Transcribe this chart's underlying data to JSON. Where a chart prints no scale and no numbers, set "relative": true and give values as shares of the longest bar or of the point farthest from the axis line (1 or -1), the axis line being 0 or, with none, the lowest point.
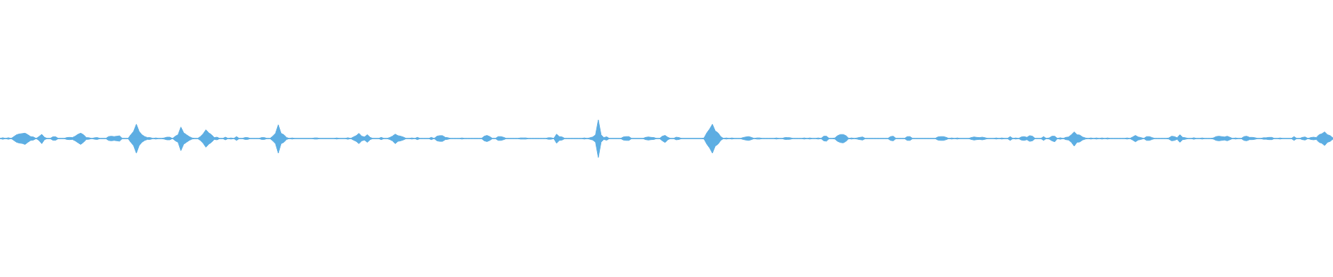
{
  "chart_data": {
    "type": "area",
    "relative": true,
    "categories": [
      null,
      null,
      null,
      null,
      null,
      null,
      null,
      null,
      null,
      null,
      null,
      null,
      null,
      null,
      null,
      null,
      null,
      null,
      null,
      null,
      null,
      null,
      null,
      null,
      null,
      null,
      null,
      null,
      null,
      null,
      null,
      null,
      null,
      null,
      null,
      null,
      null,
      null,
      null,
      null,
      null,
      null,
      null,
      null,
      null,
      null,
      null,
      null,
      null,
      null,
      null,
      null,
      null,
      null,
      null,
      null,
      null,
      null,
      null,
      null,
      null,
      null,
      null,
      null,
      null,
      null,
      null,
      null,
      null,
      null,
      null,
      null,
      null,
      null,
      null,
      null,
      null,
      null,
      null,
      null,
      null,
      null,
      null,
      null,
      null,
      null,
      null,
      null,
      null,
      null,
      null,
      null,
      null,
      null,
      null,
      null,
      null,
      null,
      null,
      null,
      null,
      null,
      null,
      null,
      null,
      null,
      null,
      null,
      null,
      null,
      null,
      null,
      null,
      null,
      null,
      null,
      null,
      null,
      null,
      null,
      null,
      null,
      null,
      null,
      null,
      null,
      null,
      null,
      null,
      null,
      null,
      null,
      null,
      null,
      null,
      null,
      null,
      null,
      null,
      null,
      null,
      null,
      null,
      null,
      null,
      null,
      null,
      null,
      null,
      null,
      null,
      null,
      null,
      null,
      null,
      null,
      null,
      null,
      null,
      null,
      null,
      null,
      null,
      null,
      null,
      null,
      null,
      null,
      null,
      null,
      null,
      null,
      null,
      null,
      null,
      null,
      null,
      null,
      null,
      null,
      null,
      null,
      null,
      null,
      null,
      null,
      null,
      null,
      null,
      null,
      null,
      null,
      null,
      null,
      null,
      null,
      null,
      null,
      null,
      null,
      null,
      null,
      null,
      null,
      null,
      null,
      null,
      null,
      null,
      null,
      null,
      null,
      null,
      null,
      null,
      null,
      null,
      null,
      null,
      null,
      null,
      null,
      null,
      null,
      null,
      null,
      null,
      null,
      null,
      null,
      null,
      null,
      null,
      null,
      null,
      null,
      null,
      null,
      null,
      null,
      null,
      null,
      null,
      null,
      null,
      null,
      null,
      null,
      null,
      null,
      null,
      null,
      null,
      null,
      null,
      null,
      null,
      null,
      null,
      null,
      null,
      null,
      null,
      null,
      null,
      null,
      null,
      null,
      null,
      null,
      null,
      null,
      null,
      null,
      null,
      null,
      null,
      null,
      null,
      null,
      null,
      null,
      null,
      null,
      null,
      null,
      null,
      null,
      null,
      null,
      null,
      null,
      null,
      null,
      null,
      null,
      null,
      null,
      null,
      null,
      null,
      null,
      null,
      null,
      null,
      null,
      null,
      null,
      null,
      null,
      null,
      null,
      null,
      null,
      null,
      null,
      null,
      null,
      null,
      null,
      null,
      null,
      null,
      null,
      null,
      null,
      null,
      null,
      null,
      null,
      null,
      null,
      null,
      null,
      null,
      null,
      null,
      null,
      null,
      null,
      null,
      null,
      null,
      null,
      null,
      null,
      null,
      null,
      null,
      null,
      null,
      null,
      null,
      null,
      null,
      null,
      null,
      null,
      null,
      null,
      null,
      null,
      null,
      null,
      null,
      null,
      null,
      null,
      null,
      null,
      null,
      null,
      null,
      null,
      null,
      null,
      null,
      null,
      null,
      null,
      null,
      null,
      null,
      null,
      null,
      null,
      null,
      null,
      null,
      null,
      null,
      null,
      null,
      null,
      null,
      null,
      null,
      null,
      null,
      null,
      null,
      null,
      null,
      null,
      null,
      null,
      null,
      null,
      null,
      null,
      null,
      null,
      null,
      null,
      null,
      null,
      null,
      null,
      null,
      null,
      null,
      null,
      null,
      null,
      null,
      null,
      null,
      null,
      null,
      null,
      null,
      null,
      null,
      null,
      null,
      null,
      null,
      null,
      null,
      null,
      null,
      null,
      null,
      null,
      null,
      null,
      null,
      null,
      null,
      null,
      null,
      null,
      null,
      null,
      null,
      null,
      null,
      null,
      null,
      null,
      null,
      null,
      null,
      null,
      null,
      null,
      null,
      null,
      null,
      null,
      null,
      null,
      null,
      null,
      null,
      null,
      null,
      null,
      null,
      null
    ],
    "series": [
      {
        "color": "#5dade2",
        "values": [
          0,
          0.04,
          0,
          0.04,
          0,
          0.1,
          0.2,
          0.24,
          0.26,
          0.28,
          0.2,
          0.1,
          0.08,
          0,
          0.1,
          0.22,
          0.06,
          0,
          0,
          0.09,
          0.09,
          0,
          0,
          0,
          0.05,
          0.06,
          0.05,
          0.12,
          0.22,
          0.28,
          0.2,
          0.05,
          0.04,
          0,
          0.04,
          0.05,
          0,
          0,
          0,
          0.1,
          0.12,
          0.1,
          0.12,
          0.14,
          0,
          0,
          0,
          0.2,
          0.37,
          0.75,
          0.37,
          0.2,
          0.1,
          0.05,
          0.05,
          0,
          0.03,
          0,
          0,
          0.03,
          0.07,
          0.07,
          0,
          0.12,
          0.2,
          0.6,
          0.3,
          0.2,
          0.1,
          0.03,
          0,
          0,
          0.1,
          0.25,
          0.46,
          0.3,
          0.2,
          0.05,
          0.07,
          0,
          0,
          0.07,
          0,
          0.03,
          0,
          0.1,
          0,
          0,
          0.05,
          0.05,
          0,
          0,
          0,
          0,
          0.05,
          0.05,
          0,
          0,
          0.12,
          0.27,
          0.72,
          0.27,
          0.2,
          0.05,
          0,
          0.03,
          0,
          0,
          0,
          0,
          0,
          0,
          0,
          0.03,
          0.03,
          0,
          0,
          0,
          0,
          0,
          0,
          0.03,
          0,
          0,
          0,
          0.04,
          0,
          0.08,
          0.15,
          0.27,
          0.12,
          0.08,
          0.2,
          0.06,
          0,
          0,
          0,
          0.06,
          0,
          0,
          0.05,
          0.12,
          0.23,
          0.15,
          0.12,
          0.07,
          0,
          0,
          0.03,
          0,
          0.06,
          0,
          0,
          0,
          0,
          0.06,
          0,
          0.12,
          0.15,
          0.15,
          0.06,
          0.04,
          0,
          0,
          0,
          0,
          0.03,
          0,
          0,
          0,
          0,
          0,
          0,
          0,
          0.12,
          0.16,
          0.1,
          0,
          0,
          0.1,
          0.1,
          0.06,
          0,
          0,
          0,
          0,
          0,
          0.03,
          0.03,
          0.03,
          0,
          0,
          0,
          0,
          0,
          0,
          0,
          0.04,
          0.04,
          0,
          0.23,
          0.1,
          0.08,
          0,
          0,
          0,
          0,
          0,
          0,
          0,
          0.03,
          0,
          0.04,
          0.08,
          0.19,
          0.98,
          0.19,
          0.05,
          0.09,
          0,
          0,
          0,
          0,
          0,
          0.08,
          0.1,
          0.1,
          0,
          0,
          0,
          0,
          0,
          0.06,
          0.08,
          0.06,
          0.05,
          0,
          0,
          0.12,
          0.16,
          0.06,
          0,
          0,
          0.07,
          0.05,
          0,
          0,
          0,
          0,
          0,
          0,
          0,
          0,
          0.03,
          0.3,
          0.5,
          0.75,
          0.4,
          0.3,
          0.1,
          0,
          0.03,
          0,
          0.03,
          0,
          0,
          0,
          0.05,
          0.08,
          0.1,
          0.06,
          0,
          0.03,
          0.03,
          0,
          0,
          0,
          0,
          0,
          0.03,
          0,
          0,
          0.05,
          0.05,
          0.04,
          0,
          0,
          0,
          0,
          0.03,
          0,
          0.03,
          0,
          0,
          0.03,
          0,
          0.12,
          0.12,
          0,
          0,
          0.03,
          0.15,
          0.21,
          0.21,
          0.15,
          0,
          0.03,
          0,
          0.03,
          0.06,
          0.08,
          0,
          0,
          0,
          0,
          0,
          0,
          0,
          0,
          0,
          0.1,
          0.12,
          0,
          0,
          0,
          0,
          0.1,
          0.1,
          0,
          0,
          0,
          0,
          0,
          0,
          0,
          0,
          0,
          0.08,
          0.1,
          0.1,
          0.06,
          0,
          0.03,
          0,
          0.03,
          0,
          0,
          0,
          0,
          0.05,
          0.08,
          0.06,
          0.05,
          0.07,
          0.04,
          0,
          0,
          0,
          0.03,
          0,
          0.03,
          0,
          0,
          0.1,
          0,
          0.03,
          0,
          0.08,
          0.1,
          0.06,
          0.15,
          0.12,
          0,
          0,
          0,
          0.1,
          0,
          0.03,
          0.12,
          0.12,
          0,
          0.04,
          0,
          0.06,
          0.08,
          0.2,
          0.35,
          0.2,
          0.18,
          0.08,
          0.03,
          0,
          0.03,
          0,
          0.03,
          0,
          0.03,
          0,
          0.03,
          0,
          0,
          0,
          0,
          0,
          0,
          0.03,
          0,
          0.08,
          0.16,
          0.08,
          0.05,
          0,
          0.1,
          0.1,
          0.05,
          0,
          0,
          0,
          0,
          0,
          0.03,
          0.12,
          0.1,
          0.04,
          0.2,
          0.06,
          0.04,
          0,
          0,
          0.04,
          0,
          0,
          0.03,
          0,
          0,
          0,
          0.03,
          0.1,
          0.12,
          0.1,
          0.08,
          0.12,
          0.06,
          0,
          0.03,
          0,
          0,
          0.1,
          0.12,
          0.06,
          0.06,
          0.04,
          0,
          0,
          0.04,
          0.04,
          0.06,
          0.06,
          0,
          0,
          0.03,
          0,
          0,
          0,
          0,
          0.1,
          0,
          0,
          0.06,
          0.08,
          0,
          0.05,
          0.07,
          0.05,
          0.2,
          0.25,
          0.35,
          0.2,
          0.15,
          0.03
        ]
      },
      {
        "color": "#5caee3",
        "values": [
          0,
          -0.04,
          0,
          -0.04,
          0,
          -0.1,
          -0.2,
          -0.24,
          -0.26,
          -0.31,
          -0.2,
          -0.1,
          -0.08,
          0,
          -0.1,
          -0.27,
          -0.06,
          0,
          0,
          -0.09,
          -0.09,
          0,
          0,
          0,
          -0.05,
          -0.06,
          -0.05,
          -0.12,
          -0.22,
          -0.31,
          -0.2,
          -0.05,
          -0.04,
          0,
          -0.04,
          -0.05,
          0,
          0,
          0,
          -0.1,
          -0.12,
          -0.1,
          -0.12,
          -0.14,
          0,
          0,
          0,
          -0.2,
          -0.37,
          -0.77,
          -0.37,
          -0.2,
          -0.1,
          -0.05,
          -0.05,
          0,
          -0.03,
          0,
          0,
          -0.03,
          -0.07,
          -0.07,
          0,
          -0.12,
          -0.2,
          -0.64,
          -0.3,
          -0.2,
          -0.1,
          -0.03,
          0,
          0,
          -0.1,
          -0.25,
          -0.46,
          -0.3,
          -0.2,
          -0.05,
          -0.07,
          0,
          0,
          -0.07,
          0,
          -0.03,
          0,
          -0.1,
          0,
          0,
          -0.05,
          -0.05,
          0,
          0,
          0,
          0,
          -0.05,
          -0.05,
          0,
          0,
          -0.12,
          -0.27,
          -0.77,
          -0.27,
          -0.2,
          -0.05,
          0,
          -0.03,
          0,
          0,
          0,
          0,
          0,
          0,
          0,
          -0.03,
          -0.03,
          0,
          0,
          0,
          0,
          0,
          0,
          -0.03,
          0,
          0,
          0,
          -0.04,
          0,
          -0.08,
          -0.15,
          -0.27,
          -0.12,
          -0.08,
          -0.2,
          -0.06,
          0,
          0,
          0,
          -0.06,
          0,
          0,
          -0.05,
          -0.12,
          -0.27,
          -0.15,
          -0.12,
          -0.07,
          0,
          0,
          -0.03,
          0,
          -0.06,
          0,
          0,
          0,
          0,
          -0.06,
          0,
          -0.12,
          -0.15,
          -0.15,
          -0.06,
          -0.04,
          0,
          0,
          0,
          0,
          -0.03,
          0,
          0,
          0,
          0,
          0,
          0,
          0,
          -0.12,
          -0.16,
          -0.1,
          0,
          0,
          -0.1,
          -0.1,
          -0.06,
          0,
          0,
          0,
          0,
          0,
          -0.03,
          -0.03,
          -0.03,
          0,
          0,
          0,
          0,
          0,
          0,
          0,
          -0.04,
          -0.04,
          0,
          -0.25,
          -0.1,
          -0.08,
          0,
          0,
          0,
          0,
          0,
          0,
          0,
          -0.03,
          0,
          -0.04,
          -0.08,
          -0.19,
          -1,
          -0.19,
          -0.05,
          -0.09,
          0,
          0,
          0,
          0,
          0,
          -0.08,
          -0.1,
          -0.1,
          0,
          0,
          0,
          0,
          0,
          -0.06,
          -0.08,
          -0.06,
          -0.05,
          0,
          0,
          -0.12,
          -0.21,
          -0.06,
          0,
          0,
          -0.07,
          -0.05,
          0,
          0,
          0,
          0,
          0,
          0,
          0,
          0,
          -0.03,
          -0.3,
          -0.5,
          -0.77,
          -0.4,
          -0.3,
          -0.1,
          0,
          -0.03,
          0,
          -0.03,
          0,
          0,
          0,
          -0.05,
          -0.08,
          -0.1,
          -0.06,
          0,
          -0.03,
          -0.03,
          0,
          0,
          0,
          0,
          0,
          -0.03,
          0,
          0,
          -0.05,
          -0.05,
          -0.04,
          0,
          0,
          0,
          0,
          -0.03,
          0,
          -0.03,
          0,
          0,
          -0.03,
          0,
          -0.12,
          -0.14,
          0,
          0,
          -0.03,
          -0.15,
          -0.21,
          -0.23,
          -0.15,
          0,
          -0.03,
          0,
          -0.03,
          -0.06,
          -0.08,
          0,
          0,
          0,
          0,
          0,
          0,
          0,
          0,
          0,
          -0.1,
          -0.12,
          0,
          0,
          0,
          0,
          -0.1,
          -0.1,
          0,
          0,
          0,
          0,
          0,
          0,
          0,
          0,
          0,
          -0.08,
          -0.1,
          -0.1,
          -0.06,
          0,
          -0.03,
          0,
          -0.03,
          0,
          0,
          0,
          0,
          -0.05,
          -0.08,
          -0.06,
          -0.05,
          -0.07,
          -0.04,
          0,
          0,
          0,
          -0.03,
          0,
          -0.03,
          0,
          0,
          -0.1,
          0,
          -0.03,
          0,
          -0.08,
          -0.1,
          -0.06,
          -0.15,
          -0.12,
          0,
          0,
          0,
          -0.1,
          0,
          -0.03,
          -0.12,
          -0.17,
          0,
          -0.04,
          0,
          -0.06,
          -0.08,
          -0.2,
          -0.4,
          -0.2,
          -0.18,
          -0.08,
          -0.03,
          0,
          -0.03,
          0,
          -0.03,
          0,
          -0.03,
          0,
          -0.03,
          0,
          0,
          0,
          0,
          0,
          0,
          -0.03,
          0,
          -0.08,
          -0.17,
          -0.08,
          -0.05,
          0,
          -0.1,
          -0.1,
          -0.05,
          0,
          0,
          0,
          0,
          0,
          -0.03,
          -0.12,
          -0.1,
          -0.04,
          -0.2,
          -0.06,
          -0.04,
          0,
          0,
          -0.04,
          0,
          0,
          -0.03,
          0,
          0,
          0,
          -0.03,
          -0.1,
          -0.12,
          -0.1,
          -0.08,
          -0.12,
          -0.06,
          0,
          -0.03,
          0,
          0,
          -0.1,
          -0.12,
          -0.06,
          -0.06,
          -0.04,
          0,
          0,
          -0.04,
          -0.04,
          -0.06,
          -0.06,
          0,
          0,
          -0.03,
          0,
          0,
          0,
          0,
          -0.1,
          0,
          0,
          -0.06,
          -0.08,
          0,
          -0.05,
          -0.07,
          -0.05,
          -0.2,
          -0.25,
          -0.37,
          -0.2,
          -0.15,
          -0.03
        ]
      }
    ]
  }
}
